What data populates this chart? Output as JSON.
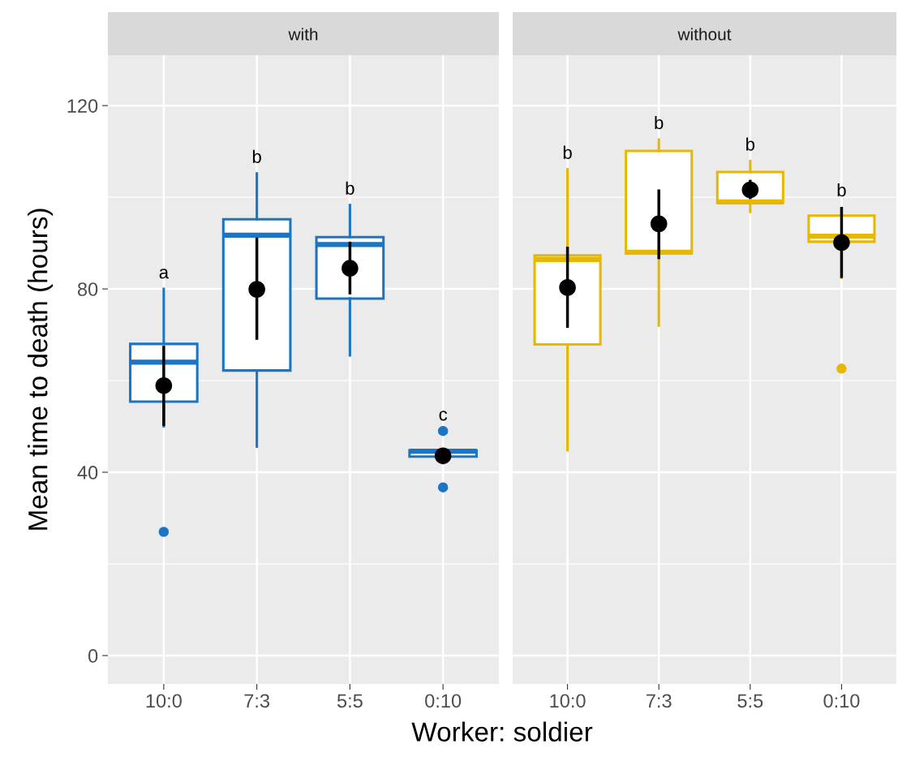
{
  "chart_data": [
    {
      "type": "box",
      "title": "with",
      "xlabel": "Worker: soldier",
      "ylabel": "Mean time to death (hours)",
      "categories": [
        "10:0",
        "7:3",
        "5:5",
        "0:10"
      ],
      "ylim": [
        -6.2,
        131
      ],
      "yticks": [
        0,
        {
          "value": 20,
          "label": null
        },
        40,
        {
          "value": 60,
          "label": null
        },
        80,
        {
          "value": 100,
          "label": null
        },
        120
      ],
      "grid": true,
      "series": [
        {
          "type": "box",
          "color": "#1a75c4",
          "boxes": [
            {
              "low": 50,
              "q1": 55.4,
              "median": 64.0,
              "q3": 68.0,
              "high": 80,
              "outliers": [
                27.0
              ]
            },
            {
              "low": 45.6,
              "q1": 62.2,
              "median": 91.7,
              "q3": 95.2,
              "high": 105.2
            },
            {
              "low": 65.5,
              "q1": 77.9,
              "median": 89.7,
              "q3": 91.3,
              "high": 98.3
            },
            {
              "low": 42.0,
              "q1": 43.4,
              "median": 44.6,
              "q3": 44.8,
              "high": 45.0,
              "outliers": [
                49.0,
                36.7
              ]
            }
          ]
        },
        {
          "type": "scatter",
          "color": "#000000",
          "x": [
            "10:0",
            "7:3",
            "5:5",
            "0:10"
          ],
          "values": [
            58.9,
            79.9,
            84.5,
            43.6
          ],
          "errors": [
            [
              50.1,
              67.6
            ],
            [
              68.9,
              91.2
            ],
            [
              78.8,
              90.3
            ],
            [
              42.0,
              45.2
            ]
          ]
        }
      ],
      "annotations": [
        "a",
        "b",
        "b",
        "c"
      ]
    },
    {
      "type": "box",
      "title": "without",
      "categories": [
        "10:0",
        "7:3",
        "5:5",
        "0:10"
      ],
      "ylim": [
        -6.2,
        131
      ],
      "yticks": [
        0,
        {
          "value": 20,
          "label": null
        },
        40,
        {
          "value": 60,
          "label": null
        },
        80,
        {
          "value": 100,
          "label": null
        },
        120
      ],
      "grid": true,
      "tick_labels": "x",
      "series": [
        {
          "type": "box",
          "color": "#e6b800",
          "boxes": [
            {
              "low": 44.8,
              "q1": 67.9,
              "median": 86.4,
              "q3": 87.3,
              "high": 106.1
            },
            {
              "low": 72.0,
              "q1": 87.7,
              "median": 88.0,
              "q3": 110.1,
              "high": 112.6
            },
            {
              "low": 96.8,
              "q1": 98.8,
              "median": 99.0,
              "q3": 105.5,
              "high": 107.9
            },
            {
              "low": 82.4,
              "q1": 90.3,
              "median": 91.5,
              "q3": 96.0,
              "high": 96.0,
              "outliers": [
                62.6
              ]
            }
          ]
        },
        {
          "type": "scatter",
          "color": "#000000",
          "x": [
            "10:0",
            "7:3",
            "5:5",
            "0:10"
          ],
          "values": [
            80.3,
            94.2,
            101.6,
            90.1
          ],
          "errors": [
            [
              71.5,
              89.2
            ],
            [
              86.5,
              101.7
            ],
            [
              99.6,
              103.8
            ],
            [
              82.4,
              97.9
            ]
          ]
        }
      ],
      "annotations": [
        "b",
        "b",
        "b",
        "b"
      ]
    }
  ]
}
